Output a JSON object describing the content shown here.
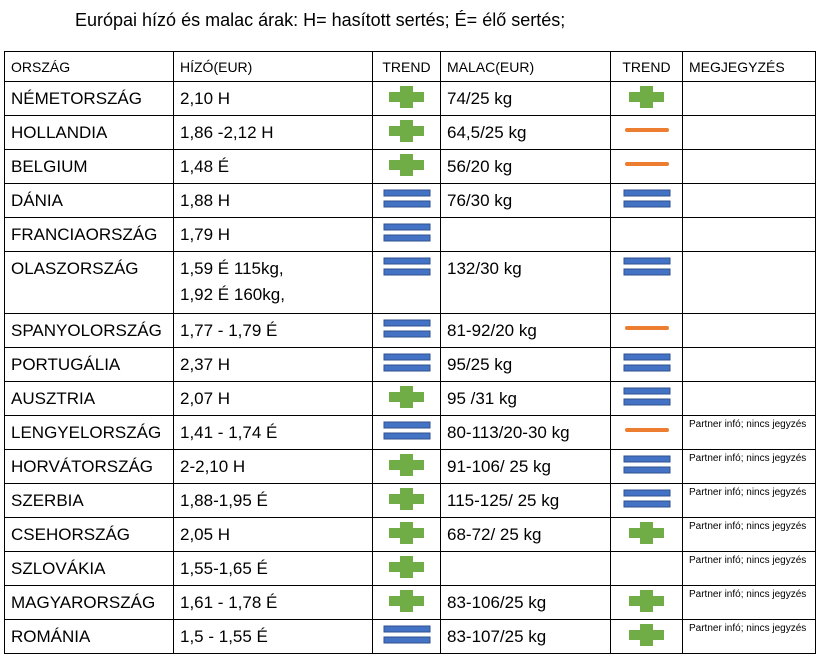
{
  "header": {
    "title": "Európai hízó és malac árak: H= hasított sertés; É= élő sertés;"
  },
  "table": {
    "columns": [
      "ORSZÁG",
      "HÍZÓ(EUR)",
      "TREND",
      "MALAC(EUR)",
      "TREND",
      "MEGJEGYZÉS"
    ],
    "icons": {
      "plus": "#70ad47",
      "equals": "#4472c4",
      "minus": "#ed7d31"
    },
    "rows": [
      {
        "country": "NÉMETORSZÁG",
        "hizo": "2,10 H",
        "trend1": "plus",
        "malac": "74/25 kg",
        "trend2": "plus"
      },
      {
        "country": "HOLLANDIA",
        "hizo": "1,86 -2,12 H",
        "trend1": "plus",
        "malac": "64,5/25 kg",
        "trend2": "minus"
      },
      {
        "country": "BELGIUM",
        "hizo": "1,48 É",
        "trend1": "plus",
        "malac": "56/20 kg",
        "trend2": "minus"
      },
      {
        "country": "DÁNIA",
        "hizo": "1,88 H",
        "trend1": "equals",
        "malac": "76/30 kg",
        "trend2": "equals"
      },
      {
        "country": "FRANCIAORSZÁG",
        "hizo": "1,79 H",
        "trend1": "equals"
      },
      {
        "country": "OLASZORSZÁG",
        "hizo": "1,59 É 115kg,\n1,92 É 160kg,",
        "trend1": "equals",
        "malac": "132/30 kg",
        "trend2": "equals"
      },
      {
        "country": "SPANYOLORSZÁG",
        "hizo": "1,77 - 1,79 É",
        "trend1": "equals",
        "malac": "81-92/20 kg",
        "trend2": "minus"
      },
      {
        "country": "PORTUGÁLIA",
        "hizo": "2,37 H",
        "trend1": "equals",
        "malac": "95/25 kg",
        "trend2": "equals"
      },
      {
        "country": "AUSZTRIA",
        "hizo": "2,07 H",
        "trend1": "plus",
        "malac": "95 /31 kg",
        "trend2": "equals"
      },
      {
        "country": "LENGYELORSZÁG",
        "hizo": "1,41 - 1,74 É",
        "trend1": "equals",
        "malac": "80-113/20-30 kg",
        "trend2": "minus",
        "note": "Partner infó; nincs jegyzés"
      },
      {
        "country": "HORVÁTORSZÁG",
        "hizo": "2-2,10 H",
        "trend1": "plus",
        "malac": "91-106/ 25 kg",
        "trend2": "equals",
        "note": "Partner infó; nincs jegyzés"
      },
      {
        "country": "SZERBIA",
        "hizo": "1,88-1,95 É",
        "trend1": "plus",
        "malac": "115-125/ 25 kg",
        "trend2": "equals",
        "note": "Partner infó; nincs jegyzés"
      },
      {
        "country": "CSEHORSZÁG",
        "hizo": "2,05 H",
        "trend1": "plus",
        "malac": "68-72/ 25 kg",
        "trend2": "plus",
        "note": "Partner infó; nincs jegyzés"
      },
      {
        "country": "SZLOVÁKIA",
        "hizo": "1,55-1,65 É",
        "trend1": "plus",
        "note": "Partner infó; nincs jegyzés"
      },
      {
        "country": "MAGYARORSZÁG",
        "hizo": "1,61 - 1,78 É",
        "trend1": "plus",
        "malac": "83-106/25 kg",
        "trend2": "plus",
        "note": "Partner infó; nincs jegyzés"
      },
      {
        "country": "ROMÁNIA",
        "hizo": "1,5 - 1,55 É",
        "trend1": "equals",
        "malac": "83-107/25 kg",
        "trend2": "plus",
        "note": "Partner infó; nincs jegyzés"
      }
    ]
  }
}
